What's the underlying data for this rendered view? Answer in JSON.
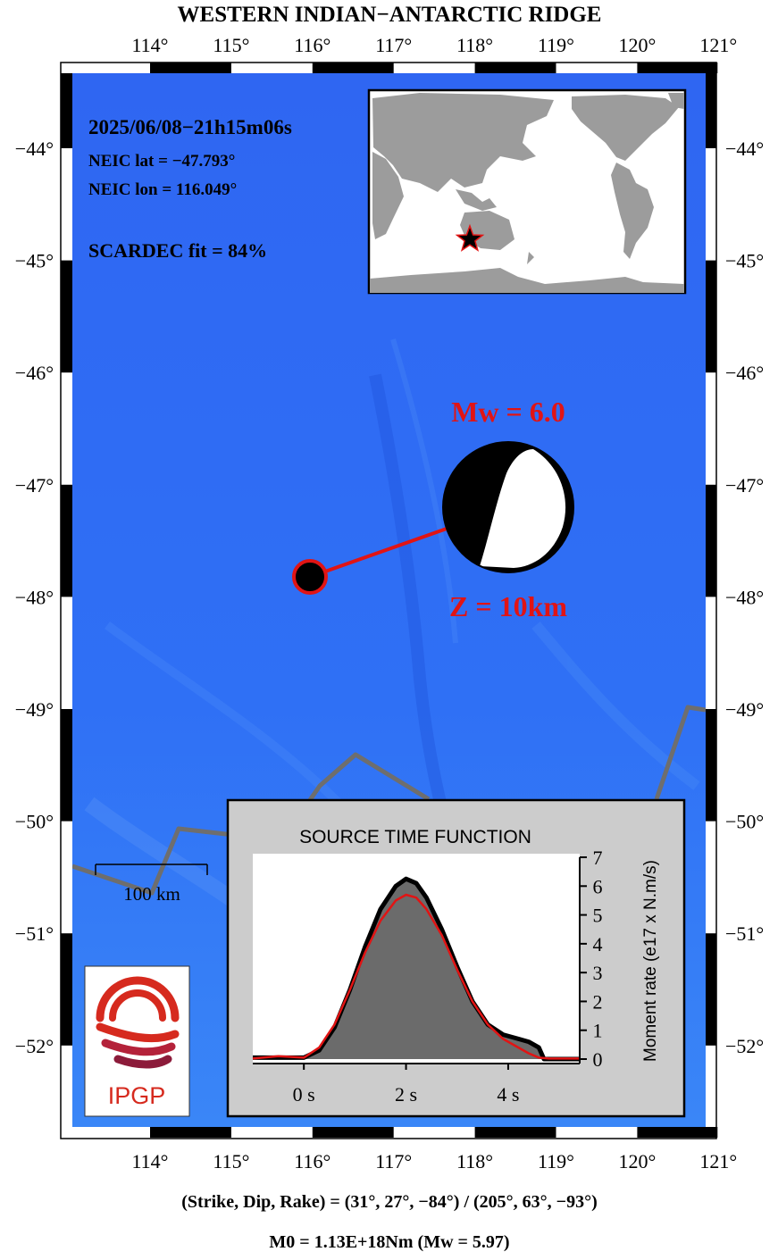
{
  "title": "WESTERN INDIAN−ANTARCTIC RIDGE",
  "event": {
    "datetime": "2025/06/08−21h15m06s",
    "lat_line": "NEIC lat  = −47.793°",
    "lon_line": "NEIC lon = 116.049°",
    "fit_line": "SCARDEC fit = 84%",
    "magnitude_label": "Mw = 6.0",
    "depth_label": "Z =  10km",
    "lat": -47.793,
    "lon": 116.049
  },
  "axes": {
    "lon_ticks": [
      {
        "value": 114,
        "label": "114°"
      },
      {
        "value": 115,
        "label": "115°"
      },
      {
        "value": 116,
        "label": "116°"
      },
      {
        "value": 117,
        "label": "117°"
      },
      {
        "value": 118,
        "label": "118°"
      },
      {
        "value": 119,
        "label": "119°"
      },
      {
        "value": 120,
        "label": "120°"
      },
      {
        "value": 121,
        "label": "121°"
      }
    ],
    "lat_ticks": [
      {
        "value": -44,
        "label": "−44°"
      },
      {
        "value": -45,
        "label": "−45°"
      },
      {
        "value": -46,
        "label": "−46°"
      },
      {
        "value": -47,
        "label": "−47°"
      },
      {
        "value": -48,
        "label": "−48°"
      },
      {
        "value": -49,
        "label": "−49°"
      },
      {
        "value": -50,
        "label": "−50°"
      },
      {
        "value": -51,
        "label": "−51°"
      },
      {
        "value": -52,
        "label": "−52°"
      }
    ]
  },
  "scale_bar": {
    "label": "100 km"
  },
  "logo": {
    "text": "IPGP"
  },
  "stf": {
    "title": "SOURCE TIME FUNCTION",
    "ylabel": "Moment rate (e17 x N.m/s)",
    "x_ticks": [
      {
        "value": 0,
        "label": "0 s"
      },
      {
        "value": 2,
        "label": "2 s"
      },
      {
        "value": 4,
        "label": "4 s"
      }
    ],
    "y_ticks": [
      {
        "value": 0,
        "label": "0"
      },
      {
        "value": 1,
        "label": "1"
      },
      {
        "value": 2,
        "label": "2"
      },
      {
        "value": 3,
        "label": "3"
      },
      {
        "value": 4,
        "label": "4"
      },
      {
        "value": 5,
        "label": "5"
      },
      {
        "value": 6,
        "label": "6"
      },
      {
        "value": 7,
        "label": "7"
      }
    ]
  },
  "footer": {
    "nodal_planes": "(Strike, Dip, Rake) = (31°, 27°, −84°) / (205°, 63°, −93°)",
    "moment": "M0 = 1.13E+18Nm  (Mw = 5.97)"
  },
  "colors": {
    "ocean": "#2f6bf5",
    "ridge": "#6e6e6e",
    "accent": "#e11414",
    "stf_fill": "#6b6b6b",
    "panel": "#cccccc",
    "logo_red": "#d62a1e",
    "logo_dark": "#8c1b3a"
  },
  "chart_data": {
    "type": "area",
    "title": "SOURCE TIME FUNCTION",
    "xlabel": "",
    "ylabel": "Moment rate (e17 x N.m/s)",
    "xlim": [
      -1,
      5.4
    ],
    "ylim": [
      0,
      7
    ],
    "grid": false,
    "series": [
      {
        "x": [
          -1.0,
          -0.5,
          0.0,
          0.3,
          0.6,
          0.9,
          1.2,
          1.5,
          1.8,
          2.0,
          2.2,
          2.4,
          2.7,
          3.0,
          3.3,
          3.6,
          3.9,
          4.2,
          4.4,
          4.6,
          4.7,
          5.4
        ],
        "y": [
          0.05,
          0.05,
          0.05,
          0.3,
          1.1,
          2.4,
          3.9,
          5.2,
          6.0,
          6.25,
          6.1,
          5.6,
          4.5,
          3.2,
          2.0,
          1.2,
          0.85,
          0.7,
          0.6,
          0.4,
          0.0,
          0.0
        ]
      },
      {
        "x": [
          -1.0,
          -0.5,
          0.0,
          0.3,
          0.6,
          0.9,
          1.2,
          1.5,
          1.8,
          2.0,
          2.2,
          2.4,
          2.7,
          3.0,
          3.3,
          3.6,
          3.9,
          4.2,
          4.4,
          4.6,
          4.8,
          5.4
        ],
        "y": [
          0.02,
          0.1,
          0.05,
          0.4,
          1.2,
          2.4,
          3.7,
          4.8,
          5.5,
          5.7,
          5.6,
          5.2,
          4.3,
          3.1,
          2.0,
          1.2,
          0.7,
          0.4,
          0.2,
          0.05,
          0.02,
          0.02
        ]
      }
    ]
  }
}
